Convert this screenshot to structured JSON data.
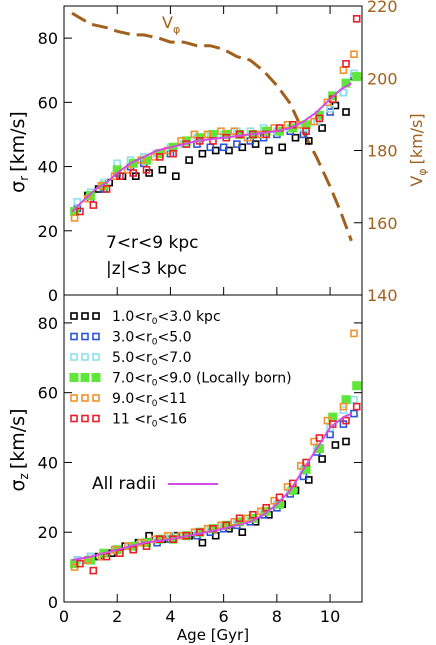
{
  "chart_data": [
    {
      "type": "scatter",
      "panel": "top",
      "ylabel_main": "σ",
      "ylabel_sub": "r",
      "ylabel_unit": "[km/s]",
      "ylim": [
        0,
        90
      ],
      "yticks": [
        0,
        20,
        40,
        60,
        80
      ],
      "right_axis": {
        "label_main": "V",
        "label_sub": "φ",
        "label_unit": "[km/s]",
        "ylim": [
          140,
          220
        ],
        "ticks": [
          140,
          160,
          180,
          200,
          220
        ],
        "color": "#a0601e"
      },
      "annotations": [
        "7<r<9 kpc",
        "|z|<3 kpc"
      ],
      "vphi_label": "V",
      "vphi_sub": "φ",
      "vphi_curve": {
        "x": [
          0.3,
          1.0,
          1.6,
          2.0,
          2.6,
          3.0,
          3.6,
          4.0,
          4.5,
          5.0,
          5.5,
          6.0,
          6.5,
          7.0,
          7.5,
          8.0,
          8.5,
          9.0,
          9.5,
          10.0,
          10.4,
          10.8
        ],
        "values": [
          218,
          215,
          214,
          213,
          212,
          212,
          211,
          210,
          210,
          209,
          209,
          208,
          206,
          205,
          202,
          198,
          193,
          185,
          178,
          170,
          163,
          155
        ]
      },
      "all_radii": {
        "x": [
          0.3,
          0.8,
          1.2,
          1.6,
          2.0,
          2.5,
          3.0,
          3.5,
          4.0,
          4.5,
          5.0,
          5.5,
          6.0,
          6.5,
          7.0,
          7.5,
          8.0,
          8.5,
          9.0,
          9.5,
          10.0,
          10.4,
          10.8
        ],
        "values": [
          26,
          30,
          33,
          35,
          38,
          41,
          43,
          45,
          46,
          47,
          48,
          48.5,
          49,
          49.5,
          50,
          50.5,
          51,
          52,
          54,
          57,
          61,
          64,
          66
        ]
      },
      "series": [
        {
          "name": "1.0<r0<3.0 kpc",
          "color": "#000000",
          "x": [
            0.4,
            0.9,
            1.3,
            1.7,
            2.2,
            2.7,
            3.2,
            3.7,
            4.2,
            4.7,
            5.2,
            5.7,
            6.2,
            6.7,
            7.2,
            7.7,
            8.2,
            8.7,
            9.2,
            9.7,
            10.2,
            10.6
          ],
          "values": [
            26,
            31,
            33,
            35,
            37,
            37,
            38,
            39,
            37,
            42,
            44,
            45,
            45,
            46,
            47,
            45,
            46,
            49,
            48,
            52,
            59,
            57
          ]
        },
        {
          "name": "3.0<r0<5.0",
          "color": "#2b55d6",
          "x": [
            0.5,
            1.0,
            1.5,
            2.0,
            2.5,
            3.0,
            3.5,
            4.0,
            4.5,
            5.0,
            5.5,
            6.0,
            6.5,
            7.0,
            7.5,
            8.0,
            8.5,
            9.0,
            9.5,
            10.0,
            10.5,
            10.9
          ],
          "values": [
            27,
            30,
            33,
            38,
            40,
            41,
            44,
            44,
            47,
            47,
            46,
            46,
            47,
            48,
            49,
            50,
            51,
            50,
            54,
            57,
            63,
            68
          ]
        },
        {
          "name": "5.0<r0<7.0",
          "color": "#8fe0ec",
          "x": [
            0.5,
            1.0,
            1.5,
            2.0,
            2.5,
            3.0,
            3.5,
            4.0,
            4.5,
            5.0,
            5.5,
            6.0,
            6.5,
            7.0,
            7.5,
            8.0,
            8.5,
            9.0,
            9.5,
            10.0,
            10.5,
            10.9
          ],
          "values": [
            29,
            32,
            35,
            41,
            42,
            43,
            44,
            46,
            47,
            49,
            50,
            50,
            51,
            51,
            52,
            51,
            52,
            52,
            54,
            58,
            63,
            69
          ]
        },
        {
          "name": "7.0<r0<9.0 (Locally born)",
          "color": "#5ee63a",
          "x": [
            0.4,
            1.0,
            1.5,
            2.0,
            2.6,
            3.1,
            3.6,
            4.1,
            4.6,
            5.1,
            5.6,
            6.1,
            6.6,
            7.1,
            7.6,
            8.1,
            8.6,
            9.1,
            9.6,
            10.1,
            10.6,
            11.0
          ],
          "values": [
            26,
            31,
            34,
            39,
            41,
            42,
            44,
            46,
            48,
            49,
            50,
            50,
            50,
            50,
            51,
            51,
            52,
            53,
            56,
            62,
            66,
            68
          ]
        },
        {
          "name": "9.0<r0<11",
          "color": "#f0932e",
          "x": [
            0.4,
            0.9,
            1.4,
            1.9,
            2.4,
            2.9,
            3.4,
            3.9,
            4.4,
            4.9,
            5.4,
            5.9,
            6.4,
            6.9,
            7.4,
            7.9,
            8.4,
            8.9,
            9.4,
            9.9,
            10.5,
            10.9
          ],
          "values": [
            24,
            30,
            34,
            37,
            39,
            42,
            43,
            45,
            48,
            50,
            50,
            51,
            51,
            49,
            50,
            52,
            53,
            53,
            54,
            60,
            70,
            75
          ]
        },
        {
          "name": "11 <r0<16",
          "color": "#e8202a",
          "x": [
            0.6,
            1.1,
            1.6,
            2.1,
            2.6,
            3.1,
            3.6,
            4.1,
            4.6,
            5.1,
            5.6,
            6.1,
            6.6,
            7.1,
            7.6,
            8.1,
            8.6,
            9.1,
            9.6,
            10.1,
            10.6,
            11.0
          ],
          "values": [
            26,
            28,
            33,
            37,
            38,
            39,
            43,
            44,
            47,
            48,
            48,
            49,
            50,
            50,
            50,
            52,
            53,
            51,
            55,
            61,
            72,
            86
          ]
        }
      ]
    },
    {
      "type": "scatter",
      "panel": "bottom",
      "ylabel_main": "σ",
      "ylabel_sub": "z",
      "ylabel_unit": "[km/s]",
      "xlabel": "Age [Gyr]",
      "xlim": [
        0,
        11.2
      ],
      "xticks": [
        0,
        2,
        4,
        6,
        8,
        10
      ],
      "ylim": [
        0,
        88
      ],
      "yticks": [
        0,
        20,
        40,
        60,
        80
      ],
      "legend_prefixes": [
        "1.0<r",
        "3.0<r",
        "5.0<r",
        "7.0<r",
        "9.0<r",
        "11 <r"
      ],
      "legend_suffixes": [
        "<3.0 kpc",
        "<5.0",
        "<7.0",
        "<9.0 (Locally born)",
        "<11",
        "<16"
      ],
      "legend_sub": "0",
      "all_radii_label": "All radii",
      "all_radii": {
        "x": [
          0.3,
          1.0,
          2.0,
          3.0,
          4.0,
          5.0,
          6.0,
          7.0,
          7.5,
          8.0,
          8.5,
          9.0,
          9.5,
          10.0,
          10.5,
          10.8
        ],
        "values": [
          12,
          13,
          15,
          17,
          18,
          19.5,
          21,
          23,
          25,
          28,
          32,
          38,
          44,
          50,
          53,
          54
        ]
      },
      "series": [
        {
          "name": "1.0<r0<3.0 kpc",
          "color": "#000000",
          "x": [
            0.4,
            0.9,
            1.3,
            1.8,
            2.3,
            2.8,
            3.2,
            3.7,
            4.2,
            4.7,
            5.2,
            5.7,
            6.2,
            6.7,
            7.2,
            7.7,
            8.2,
            8.7,
            9.2,
            9.7,
            10.2,
            10.6
          ],
          "values": [
            11,
            12,
            13,
            14,
            16,
            17,
            19,
            18,
            19,
            19,
            17,
            19,
            21,
            20,
            23,
            25,
            28,
            32,
            35,
            41,
            45,
            46
          ]
        },
        {
          "name": "3.0<r0<5.0",
          "color": "#2b55d6",
          "x": [
            0.5,
            1.0,
            1.5,
            2.0,
            2.5,
            3.0,
            3.5,
            4.0,
            4.5,
            5.0,
            5.5,
            6.0,
            6.5,
            7.0,
            7.5,
            8.0,
            8.5,
            9.0,
            9.5,
            10.0,
            10.5,
            10.9
          ],
          "values": [
            12,
            13,
            14,
            15,
            16,
            17,
            17,
            18,
            19,
            19,
            20,
            21,
            22,
            23,
            25,
            27,
            31,
            36,
            43,
            48,
            51,
            54
          ]
        },
        {
          "name": "5.0<r0<7.0",
          "color": "#8fe0ec",
          "x": [
            0.5,
            1.0,
            1.5,
            2.0,
            2.5,
            3.0,
            3.5,
            4.0,
            4.5,
            5.0,
            5.5,
            6.0,
            6.5,
            7.0,
            7.5,
            8.0,
            8.5,
            9.0,
            9.5,
            10.0,
            10.5,
            10.9
          ],
          "values": [
            12,
            13,
            14,
            15,
            16,
            17,
            18,
            19,
            19,
            20,
            21,
            22,
            23,
            24,
            26,
            28,
            32,
            38,
            44,
            50,
            55,
            58
          ]
        },
        {
          "name": "7.0<r0<9.0 (Locally born)",
          "color": "#5ee63a",
          "x": [
            0.4,
            1.0,
            1.5,
            2.0,
            2.6,
            3.1,
            3.6,
            4.1,
            4.6,
            5.1,
            5.6,
            6.1,
            6.6,
            7.1,
            7.6,
            8.1,
            8.6,
            9.1,
            9.6,
            10.1,
            10.6,
            11.0
          ],
          "values": [
            11,
            12,
            14,
            15,
            16,
            17,
            18,
            18,
            19,
            20,
            21,
            22,
            23,
            24,
            26,
            28,
            32,
            38,
            44,
            53,
            58,
            62
          ]
        },
        {
          "name": "9.0<r0<11",
          "color": "#f0932e",
          "x": [
            0.4,
            0.9,
            1.4,
            1.9,
            2.4,
            2.9,
            3.4,
            3.9,
            4.4,
            4.9,
            5.4,
            5.9,
            6.4,
            6.9,
            7.4,
            7.9,
            8.4,
            8.9,
            9.4,
            9.9,
            10.5,
            10.9
          ],
          "values": [
            10,
            12,
            13,
            15,
            16,
            17,
            18,
            19,
            19,
            20,
            21,
            22,
            23,
            24,
            26,
            29,
            33,
            39,
            46,
            52,
            56,
            77
          ]
        },
        {
          "name": "11 <r0<16",
          "color": "#e8202a",
          "x": [
            0.6,
            1.1,
            1.6,
            2.1,
            2.6,
            3.1,
            3.6,
            4.1,
            4.6,
            5.1,
            5.6,
            6.1,
            6.6,
            7.1,
            7.6,
            8.1,
            8.6,
            9.1,
            9.6,
            10.1,
            10.6,
            11.0
          ],
          "values": [
            11,
            9,
            13,
            14,
            15,
            16,
            18,
            18,
            19,
            20,
            21,
            22,
            24,
            25,
            27,
            30,
            34,
            40,
            47,
            51,
            52,
            56
          ]
        }
      ]
    }
  ],
  "styles": {
    "all_radii_color": "#d24de0",
    "vphi_color": "#a0601e",
    "axis_color": "#000000"
  }
}
